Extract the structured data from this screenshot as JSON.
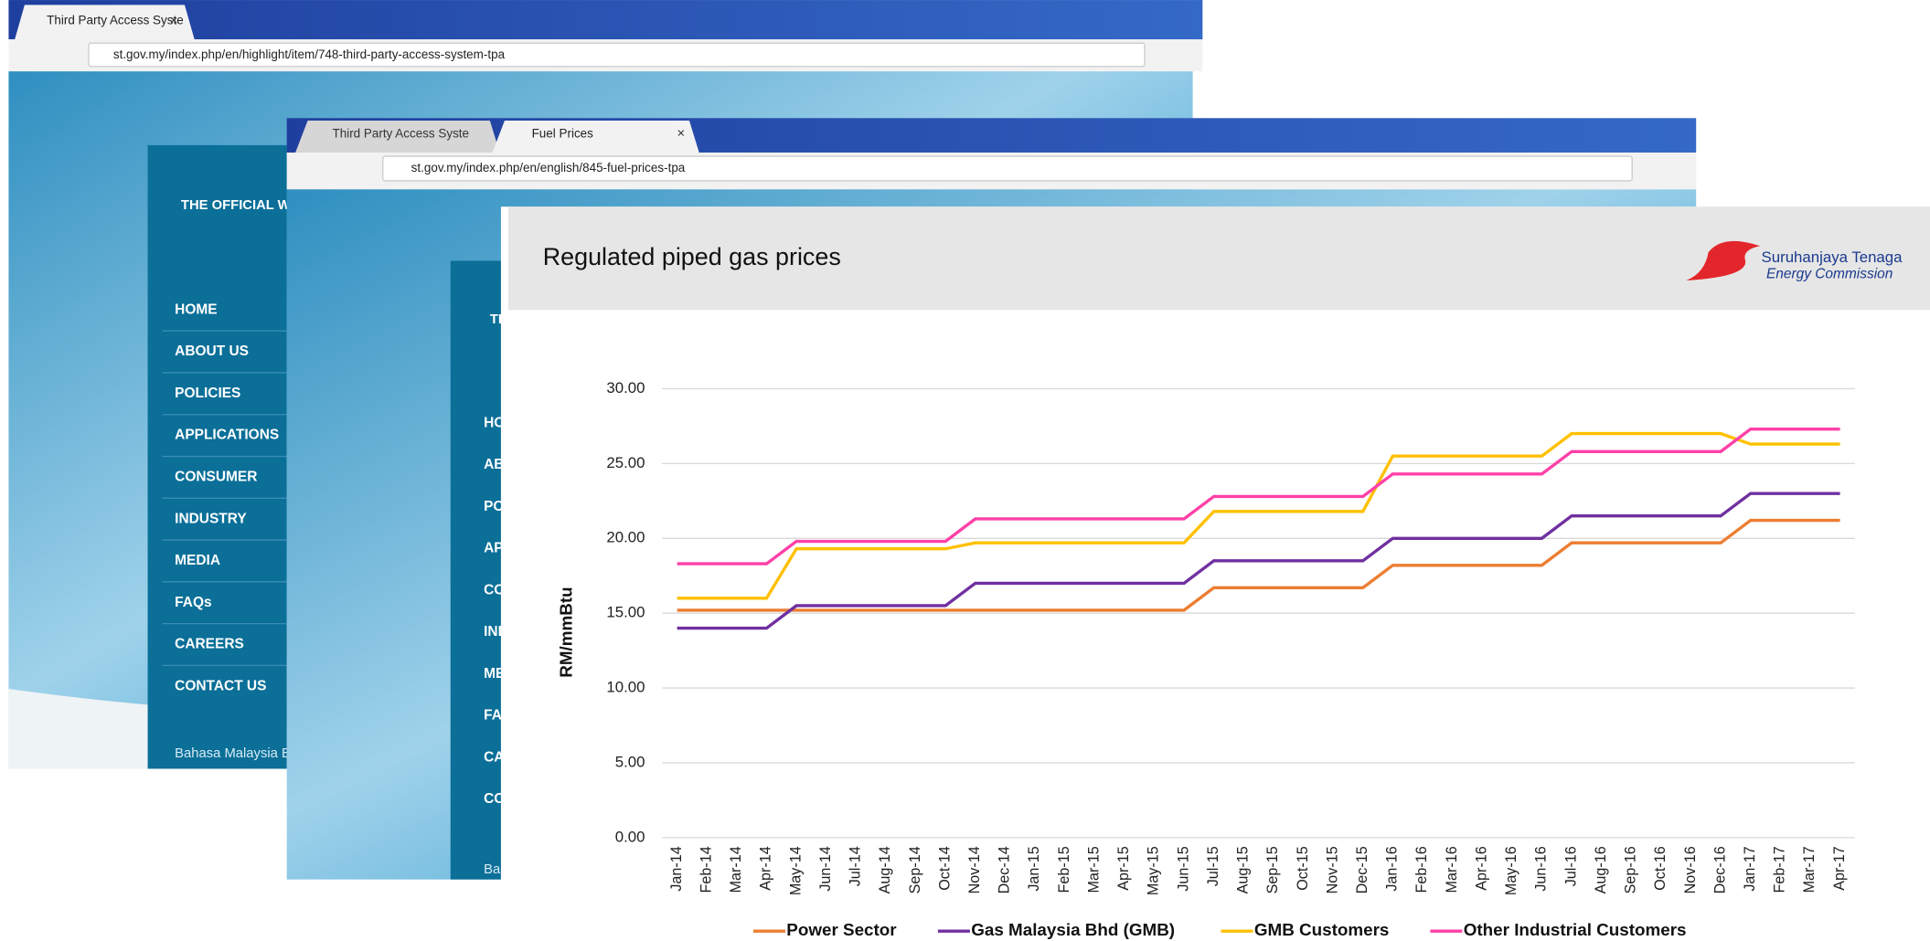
{
  "back_window": {
    "tab": "Third Party Access Syste",
    "url": "st.gov.my/index.php/en/highlight/item/748-third-party-access-system-tpa",
    "site_heading": "THE OFFICIAL WEBSIT",
    "nav": [
      "HOME",
      "ABOUT US",
      "POLICIES",
      "APPLICATIONS",
      "CONSUMER",
      "INDUSTRY",
      "MEDIA",
      "FAQs",
      "CAREERS",
      "CONTACT US"
    ],
    "language": "Bahasa Malaysia En"
  },
  "front_window": {
    "tabs": [
      "Third Party Access Syste",
      "Fuel Prices"
    ],
    "url": "st.gov.my/index.php/en/english/845-fuel-prices-tpa",
    "site_heading": "TH",
    "nav": [
      "HO",
      "AB",
      "PO",
      "AP",
      "CO",
      "IND",
      "ME",
      "FAQ",
      "CA",
      "CO"
    ],
    "language": "Ba"
  },
  "logo": {
    "name": "Suruhanjaya Tenaga",
    "subtitle": "Energy Commission"
  },
  "chart_data": {
    "type": "line",
    "title": "Regulated piped gas prices",
    "y_label": "RM/mmBtu",
    "categories": [
      "Jan-14",
      "Feb-14",
      "Mar-14",
      "Apr-14",
      "May-14",
      "Jun-14",
      "Jul-14",
      "Aug-14",
      "Sep-14",
      "Oct-14",
      "Nov-14",
      "Dec-14",
      "Jan-15",
      "Feb-15",
      "Mar-15",
      "Apr-15",
      "May-15",
      "Jun-15",
      "Jul-15",
      "Aug-15",
      "Sep-15",
      "Oct-15",
      "Nov-15",
      "Dec-15",
      "Jan-16",
      "Feb-16",
      "Mar-16",
      "Apr-16",
      "May-16",
      "Jun-16",
      "Jul-16",
      "Aug-16",
      "Sep-16",
      "Oct-16",
      "Nov-16",
      "Dec-16",
      "Jan-17",
      "Feb-17",
      "Mar-17",
      "Apr-17"
    ],
    "series": [
      {
        "name": "Power Sector",
        "color": "#ed7d31",
        "values": [
          15.2,
          15.2,
          15.2,
          15.2,
          15.2,
          15.2,
          15.2,
          15.2,
          15.2,
          15.2,
          15.2,
          15.2,
          15.2,
          15.2,
          15.2,
          15.2,
          15.2,
          15.2,
          16.7,
          16.7,
          16.7,
          16.7,
          16.7,
          16.7,
          18.2,
          18.2,
          18.2,
          18.2,
          18.2,
          18.2,
          19.7,
          19.7,
          19.7,
          19.7,
          19.7,
          19.7,
          21.2,
          21.2,
          21.2,
          21.2
        ]
      },
      {
        "name": "Gas Malaysia Bhd (GMB)",
        "color": "#7030a0",
        "values": [
          14.0,
          14.0,
          14.0,
          14.0,
          15.5,
          15.5,
          15.5,
          15.5,
          15.5,
          15.5,
          17.0,
          17.0,
          17.0,
          17.0,
          17.0,
          17.0,
          17.0,
          17.0,
          18.5,
          18.5,
          18.5,
          18.5,
          18.5,
          18.5,
          20.0,
          20.0,
          20.0,
          20.0,
          20.0,
          20.0,
          21.5,
          21.5,
          21.5,
          21.5,
          21.5,
          21.5,
          23.0,
          23.0,
          23.0,
          23.0
        ]
      },
      {
        "name": "GMB Customers",
        "color": "#ffc000",
        "values": [
          16.0,
          16.0,
          16.0,
          16.0,
          19.3,
          19.3,
          19.3,
          19.3,
          19.3,
          19.3,
          19.7,
          19.7,
          19.7,
          19.7,
          19.7,
          19.7,
          19.7,
          19.7,
          21.8,
          21.8,
          21.8,
          21.8,
          21.8,
          21.8,
          25.5,
          25.5,
          25.5,
          25.5,
          25.5,
          25.5,
          27.0,
          27.0,
          27.0,
          27.0,
          27.0,
          27.0,
          26.3,
          26.3,
          26.3,
          26.3
        ]
      },
      {
        "name": "Other Industrial Customers",
        "color": "#ff40a8",
        "values": [
          18.3,
          18.3,
          18.3,
          18.3,
          19.8,
          19.8,
          19.8,
          19.8,
          19.8,
          19.8,
          21.3,
          21.3,
          21.3,
          21.3,
          21.3,
          21.3,
          21.3,
          21.3,
          22.8,
          22.8,
          22.8,
          22.8,
          22.8,
          22.8,
          24.3,
          24.3,
          24.3,
          24.3,
          24.3,
          24.3,
          25.8,
          25.8,
          25.8,
          25.8,
          25.8,
          25.8,
          27.3,
          27.3,
          27.3,
          27.3
        ]
      }
    ],
    "ylim": [
      0,
      30
    ],
    "yticks": [
      {
        "value": 0,
        "label": "0.00"
      },
      {
        "value": 5,
        "label": "5.00"
      },
      {
        "value": 10,
        "label": "10.00"
      },
      {
        "value": 15,
        "label": "15.00"
      },
      {
        "value": 20,
        "label": "20.00"
      },
      {
        "value": 25,
        "label": "25.00"
      },
      {
        "value": 30,
        "label": "30.00"
      }
    ],
    "grid": true,
    "legend": "bottom"
  }
}
